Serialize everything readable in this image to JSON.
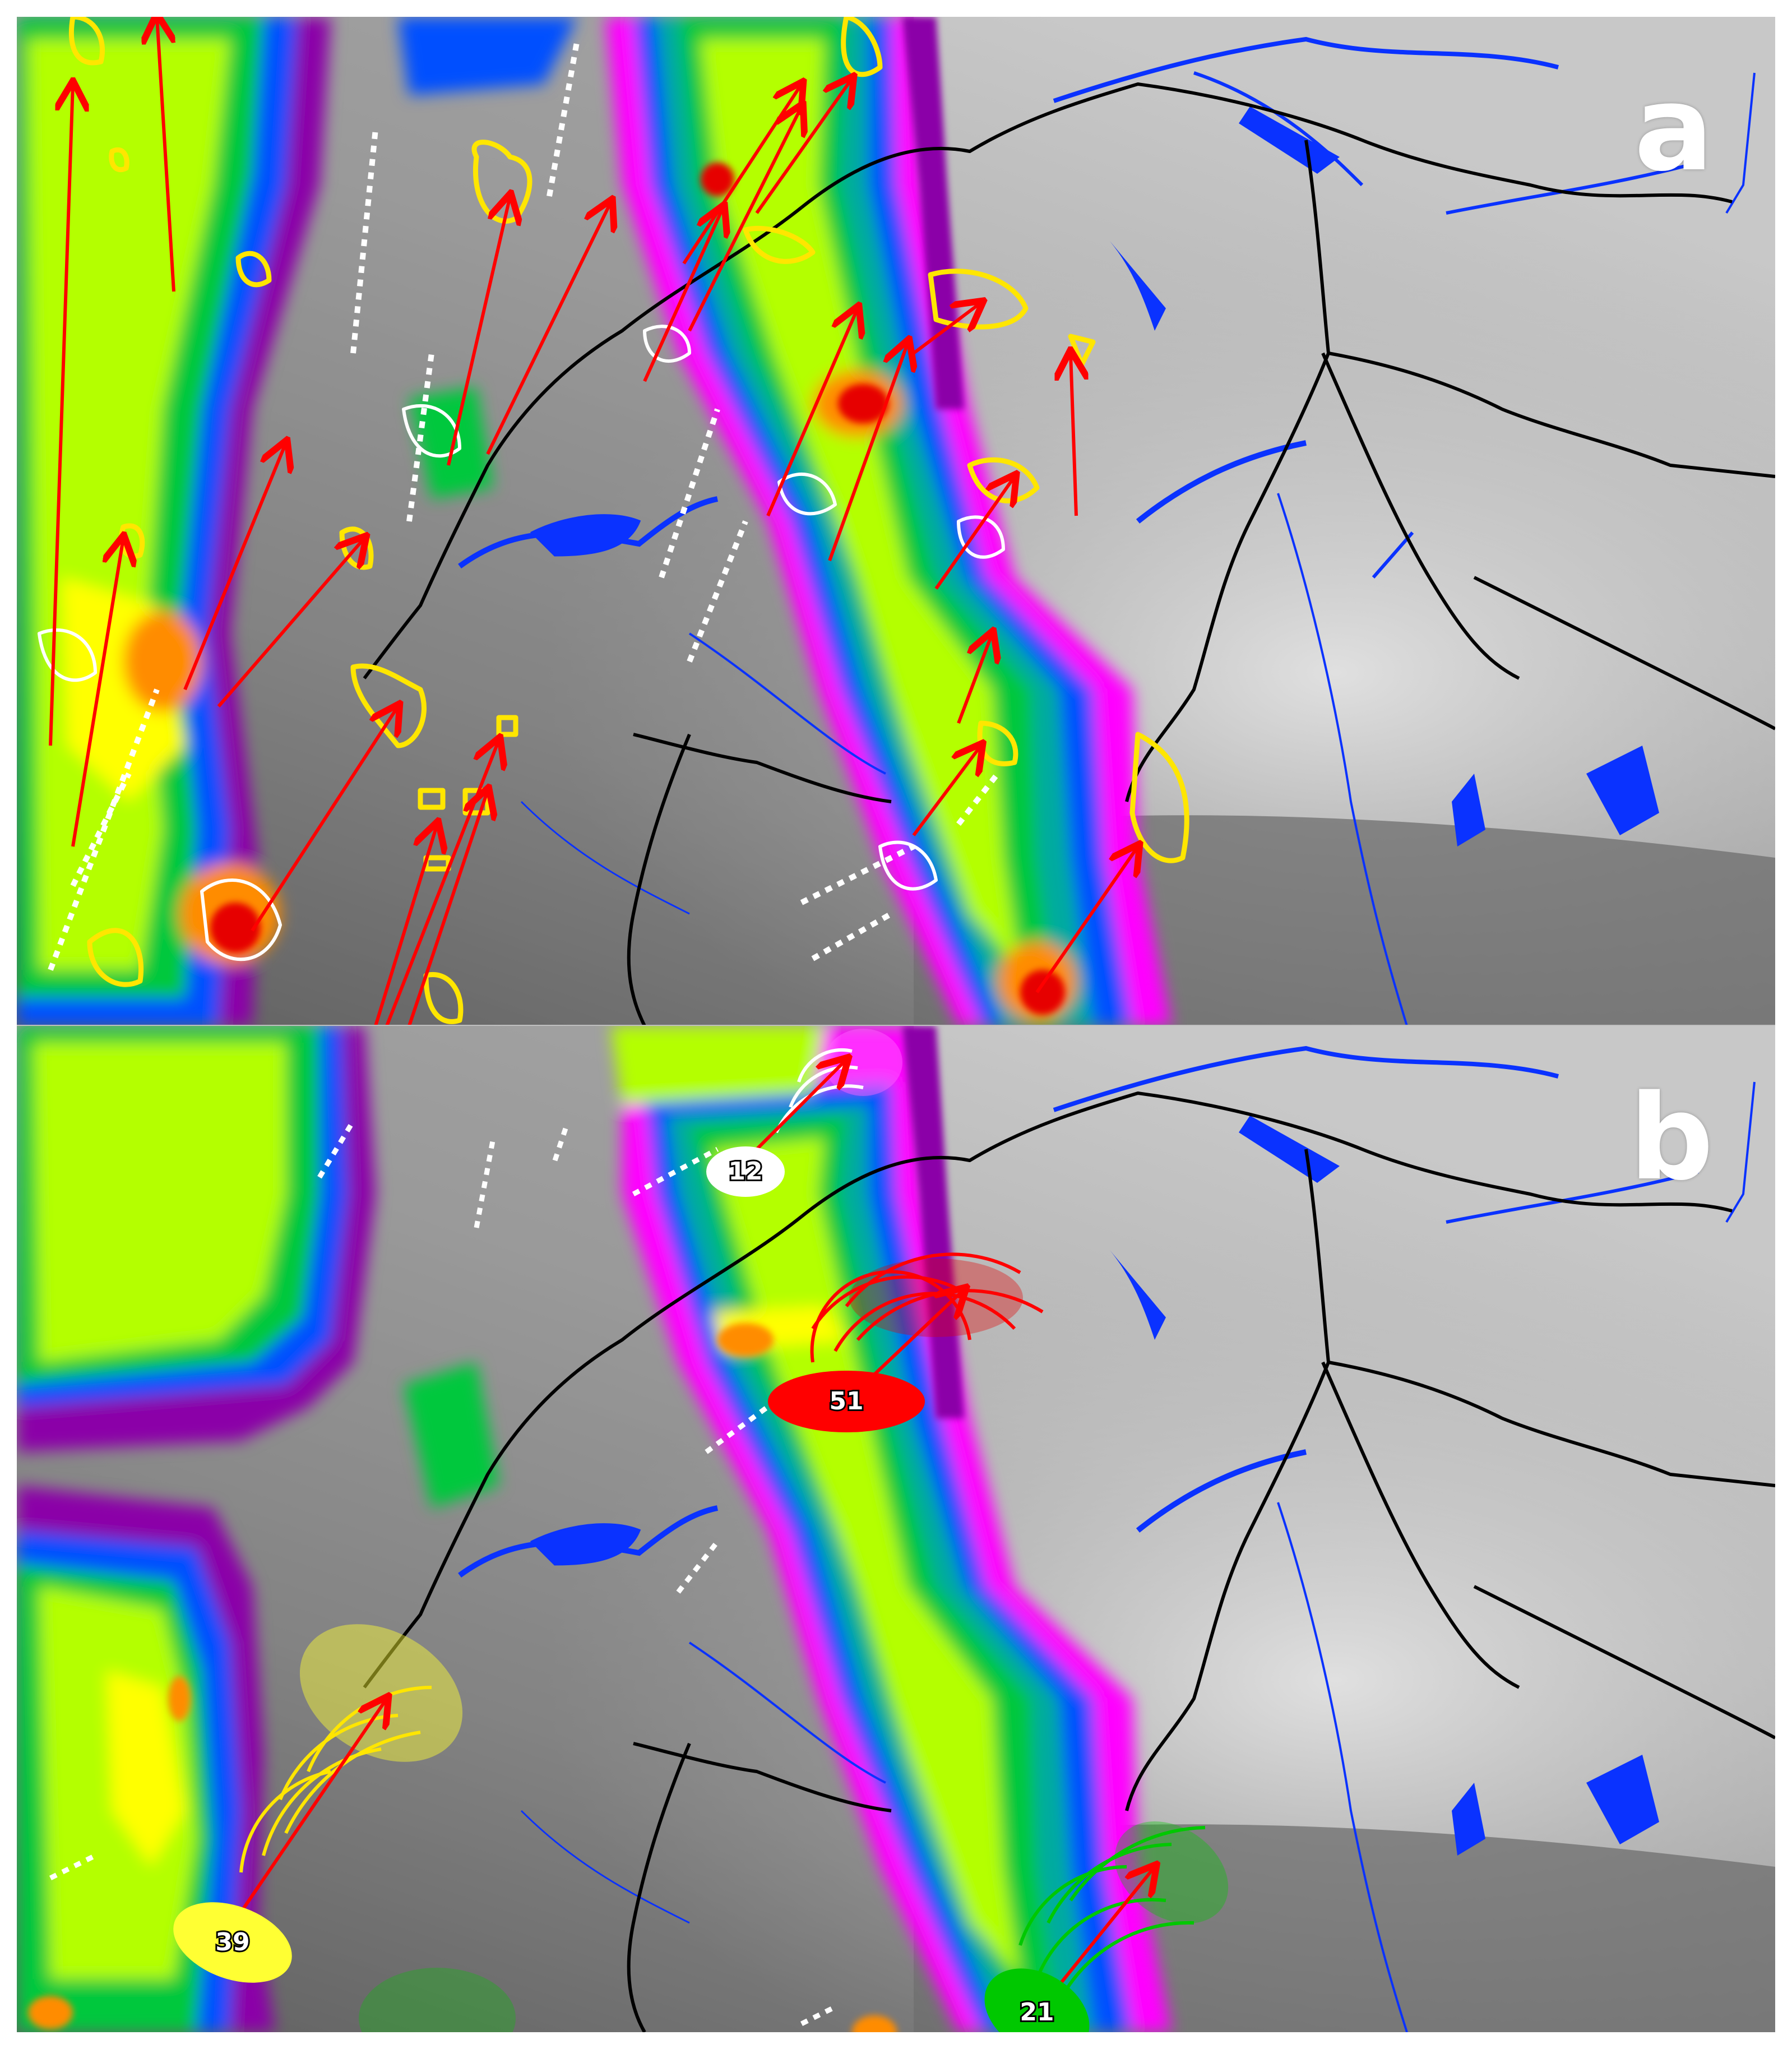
{
  "panels": [
    {
      "label": "a"
    },
    {
      "label": "b",
      "cells": [
        {
          "id": "12",
          "color": "#ffffff"
        },
        {
          "id": "51",
          "color": "#ff0000"
        },
        {
          "id": "39",
          "color": "#ffff33"
        },
        {
          "id": "21",
          "color": "#00c800"
        }
      ]
    }
  ],
  "colors": {
    "terrain_low": "#5a5a5a",
    "terrain_high": "#d6d6d6",
    "rivers_lakes": "#0a32ff",
    "borders": "#000000",
    "track_arrows": "#ff0000",
    "cell_contours_yellow": "#ffe600",
    "cell_contours_white": "#ffffff",
    "radar_scale": [
      "#8b00a8",
      "#ff00ff",
      "#0050ff",
      "#00aaa0",
      "#00c83c",
      "#b4ff00",
      "#ffff00",
      "#ff8c00",
      "#e60000"
    ]
  }
}
